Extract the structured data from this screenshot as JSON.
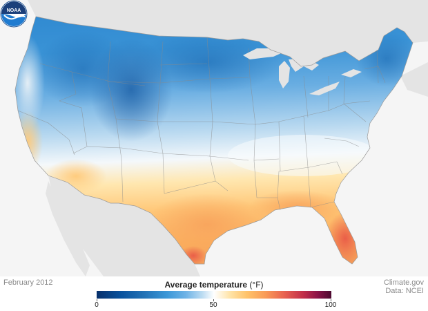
{
  "map": {
    "date": "February 2012",
    "region": "Contiguous United States"
  },
  "legend": {
    "title": "Average temperature",
    "unit": "(°F)",
    "min": "0",
    "mid": "50",
    "max": "100"
  },
  "credits": {
    "site": "Climate.gov",
    "data": "Data: NCEI"
  },
  "logo": {
    "text": "NOAA",
    "icon": "noaa-logo-icon"
  },
  "colors": {
    "cold": "#08519c",
    "cool": "#3b98d8",
    "neutral": "#ffffff",
    "warm": "#ffc36a",
    "hot": "#e8614f",
    "background": "#f5f5f5",
    "land_outside": "#e4e4e4"
  }
}
